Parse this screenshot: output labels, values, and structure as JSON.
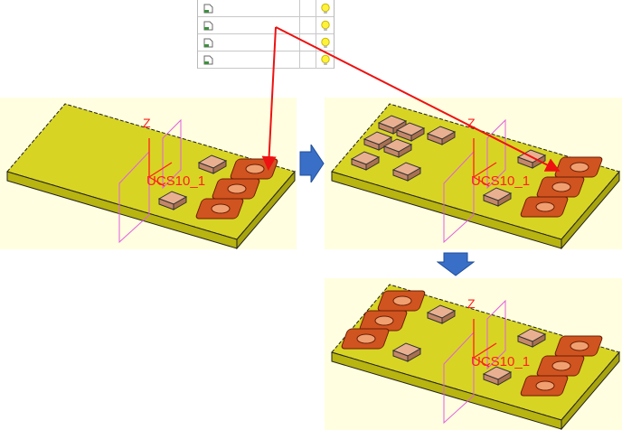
{
  "layer_tree": {
    "rows": [
      {
        "label": "",
        "icon": "file-icon",
        "status_icon": "bulb-icon"
      },
      {
        "label": "",
        "icon": "file-icon",
        "status_icon": "bulb-icon"
      },
      {
        "label": "",
        "icon": "file-icon",
        "status_icon": "bulb-icon"
      },
      {
        "label": "",
        "icon": "file-icon",
        "status_icon": "bulb-icon"
      }
    ]
  },
  "views": {
    "before": {
      "coord_label": "UCS10_1",
      "axis_label": "Z"
    },
    "intermediate": {
      "coord_label": "UCS10_1",
      "axis_label": "Z"
    },
    "result": {
      "coord_label": "UCS10_1",
      "axis_label": "Z"
    }
  },
  "colors": {
    "board": "#d8d424",
    "board_side": "#b8b410",
    "viewport_bg": "#fffee0",
    "chip": "#e0a07c",
    "highlight_pad": "#d05420",
    "leader_line": "#ee1111",
    "step_arrow": "#3a6fc8",
    "csys": "#ff2020",
    "datum_plane": "#e060e0"
  }
}
